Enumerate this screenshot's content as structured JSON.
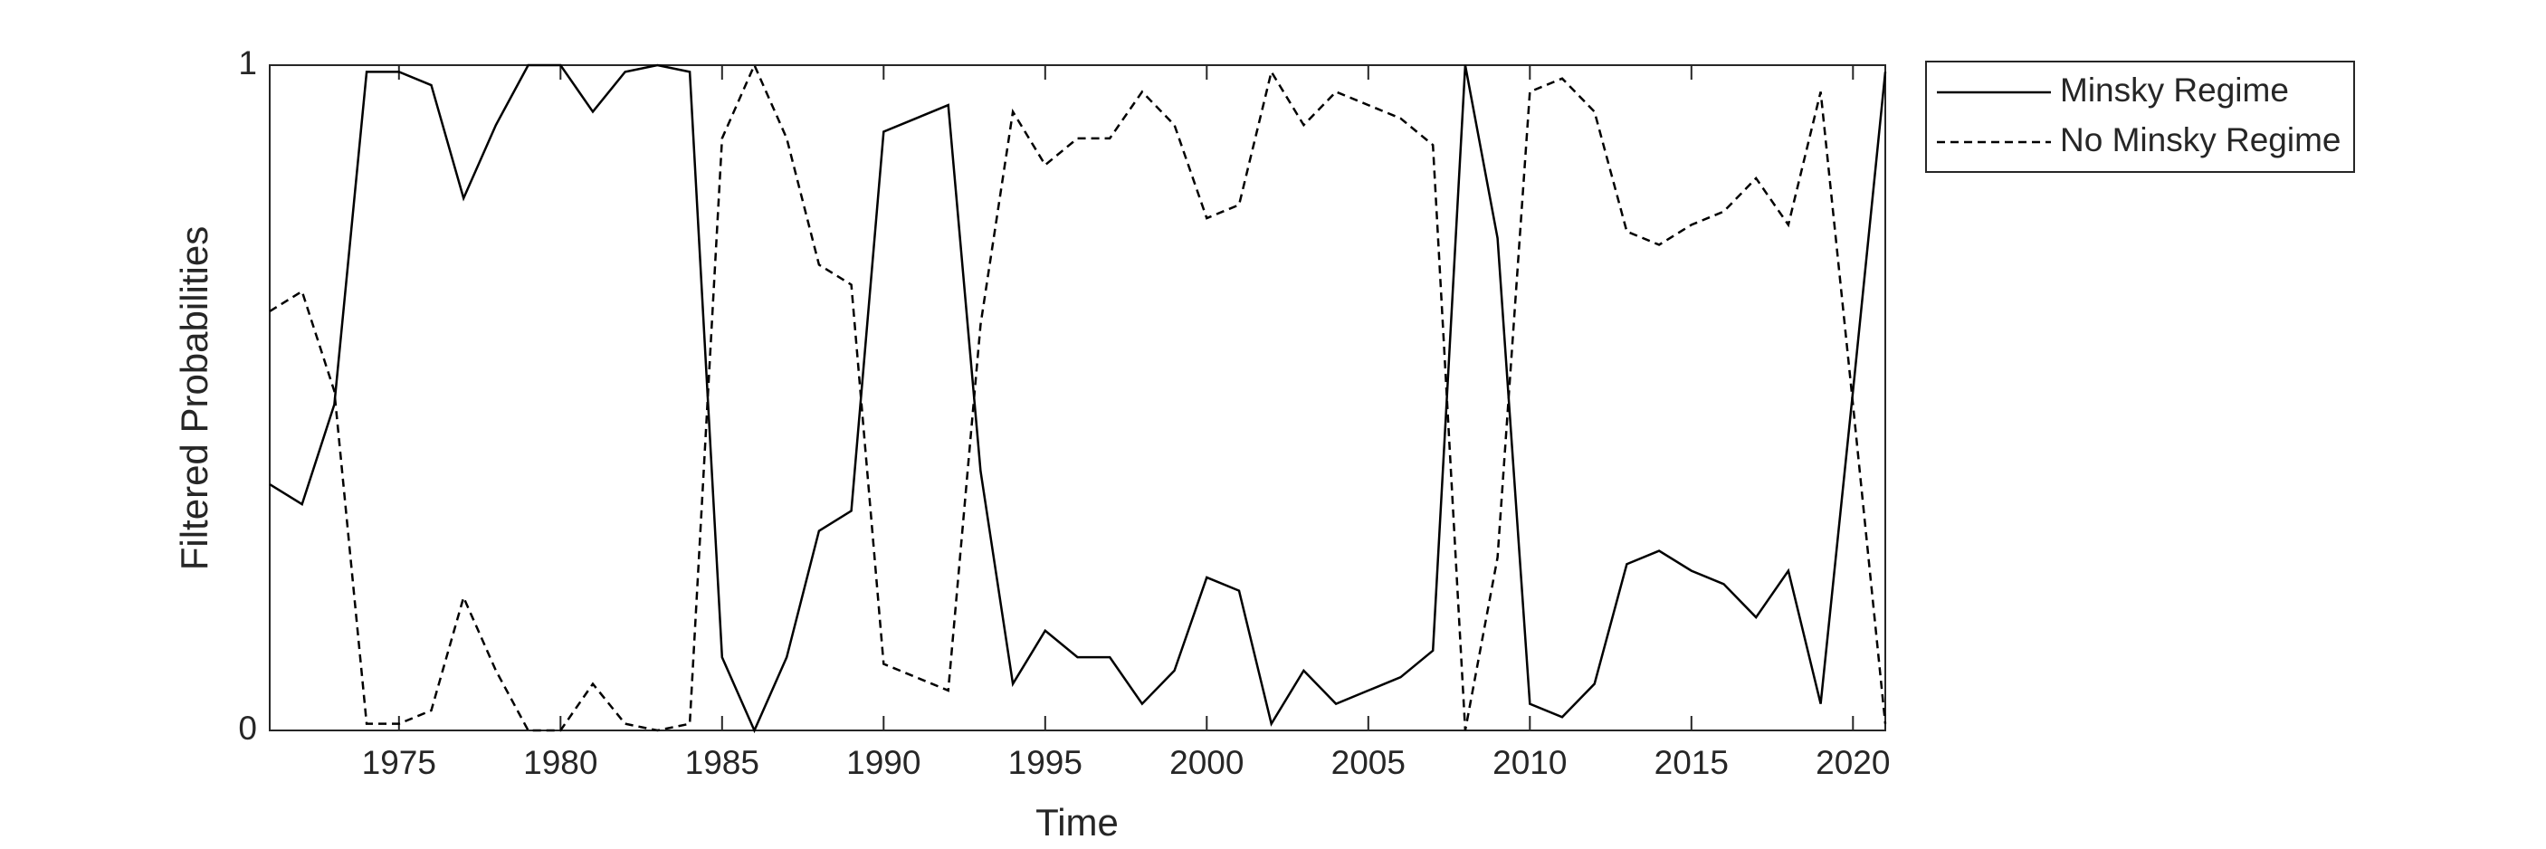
{
  "chart_data": {
    "type": "line",
    "x_label": "Time",
    "y_label": "Filtered Probabilities",
    "x": [
      1971,
      1972,
      1973,
      1974,
      1975,
      1976,
      1977,
      1978,
      1979,
      1980,
      1981,
      1982,
      1983,
      1984,
      1985,
      1986,
      1987,
      1988,
      1989,
      1990,
      1991,
      1992,
      1993,
      1994,
      1995,
      1996,
      1997,
      1998,
      1999,
      2000,
      2001,
      2002,
      2003,
      2004,
      2005,
      2006,
      2007,
      2008,
      2009,
      2010,
      2011,
      2012,
      2013,
      2014,
      2015,
      2016,
      2017,
      2018,
      2019,
      2020,
      2021
    ],
    "series": [
      {
        "name": "Minsky Regime",
        "color": "#000000",
        "linestyle": "solid",
        "values": [
          0.37,
          0.34,
          0.49,
          0.99,
          0.99,
          0.97,
          0.8,
          0.91,
          1.0,
          1.0,
          0.93,
          0.99,
          1.0,
          0.99,
          0.11,
          0.0,
          0.11,
          0.3,
          0.33,
          0.9,
          0.92,
          0.94,
          0.39,
          0.07,
          0.15,
          0.11,
          0.11,
          0.04,
          0.09,
          0.23,
          0.21,
          0.01,
          0.09,
          0.04,
          0.06,
          0.08,
          0.12,
          1.0,
          0.74,
          0.04,
          0.02,
          0.07,
          0.25,
          0.27,
          0.24,
          0.22,
          0.17,
          0.24,
          0.04,
          0.51,
          0.99
        ]
      },
      {
        "name": "No Minsky Regime",
        "color": "#000000",
        "linestyle": "dashed",
        "values": [
          0.63,
          0.66,
          0.51,
          0.01,
          0.01,
          0.03,
          0.2,
          0.09,
          0.0,
          0.0,
          0.07,
          0.01,
          0.0,
          0.01,
          0.89,
          1.0,
          0.89,
          0.7,
          0.67,
          0.1,
          0.08,
          0.06,
          0.61,
          0.93,
          0.85,
          0.89,
          0.89,
          0.96,
          0.91,
          0.77,
          0.79,
          0.99,
          0.91,
          0.96,
          0.94,
          0.92,
          0.88,
          0.0,
          0.26,
          0.96,
          0.98,
          0.93,
          0.75,
          0.73,
          0.76,
          0.78,
          0.83,
          0.76,
          0.96,
          0.49,
          0.01
        ]
      }
    ],
    "xlim": [
      1971,
      2021
    ],
    "xticks": [
      1975,
      1980,
      1985,
      1990,
      1995,
      2000,
      2005,
      2010,
      2015,
      2020
    ],
    "ylim": [
      0,
      1
    ],
    "yticks": [
      0,
      1
    ],
    "grid": false,
    "legend": "outside-top-right"
  }
}
